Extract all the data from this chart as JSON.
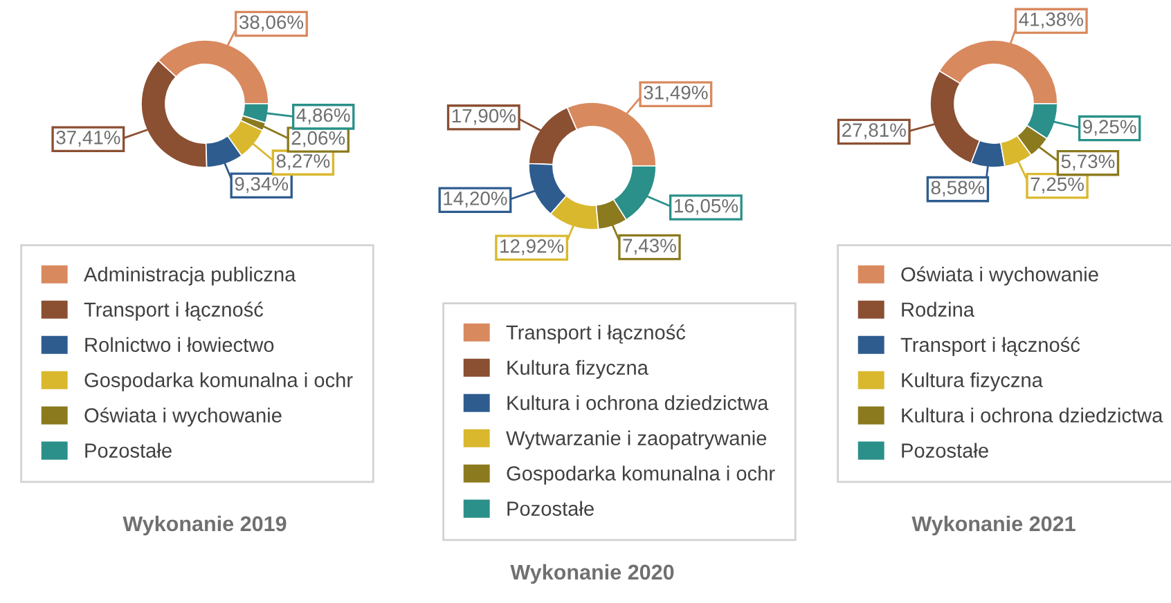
{
  "chart_data": [
    {
      "type": "donut",
      "title": "Wykonanie 2019",
      "legend": "bottom",
      "categories": [
        "Administracja publiczna",
        "Transport i łączność",
        "Rolnictwo i łowiectwo",
        "Gospodarka komunalna i ochr",
        "Oświata i wychowanie",
        "Pozostałe"
      ],
      "values": [
        38.06,
        37.41,
        9.34,
        8.27,
        2.06,
        4.86
      ],
      "value_labels": [
        "38,06%",
        "37,41%",
        "9,34%",
        "8,27%",
        "2,06%",
        "4,86%"
      ],
      "colors": [
        "#d9895e",
        "#8b4f32",
        "#2e5c8f",
        "#d9b82e",
        "#8b7a1e",
        "#2a9089"
      ]
    },
    {
      "type": "donut",
      "title": "Wykonanie 2020",
      "legend": "bottom",
      "categories": [
        "Transport i łączność",
        "Kultura fizyczna",
        "Kultura i ochrona dziedzictwa",
        "Wytwarzanie i zaopatrywanie",
        "Gospodarka komunalna i ochr",
        "Pozostałe"
      ],
      "values": [
        31.49,
        17.9,
        14.2,
        12.92,
        7.43,
        16.05
      ],
      "value_labels": [
        "31,49%",
        "17,90%",
        "14,20%",
        "12,92%",
        "7,43%",
        "16,05%"
      ],
      "colors": [
        "#d9895e",
        "#8b4f32",
        "#2e5c8f",
        "#d9b82e",
        "#8b7a1e",
        "#2a9089"
      ]
    },
    {
      "type": "donut",
      "title": "Wykonanie 2021",
      "legend": "bottom",
      "categories": [
        "Oświata i wychowanie",
        "Rodzina",
        "Transport i łączność",
        "Kultura fizyczna",
        "Kultura i ochrona dziedzictwa",
        "Pozostałe"
      ],
      "values": [
        41.38,
        27.81,
        8.58,
        7.25,
        5.73,
        9.25
      ],
      "value_labels": [
        "41,38%",
        "27,81%",
        "8,58%",
        "7,25%",
        "5,73%",
        "9,25%"
      ],
      "colors": [
        "#d9895e",
        "#8b4f32",
        "#2e5c8f",
        "#d9b82e",
        "#8b7a1e",
        "#2a9089"
      ]
    }
  ]
}
